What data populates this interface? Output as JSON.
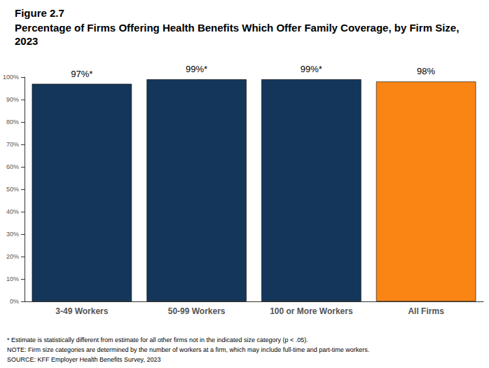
{
  "chart_data": {
    "type": "bar",
    "title": "Figure 2.7",
    "subtitle": "Percentage of Firms Offering Health Benefits Which Offer Family Coverage, by Firm Size, 2023",
    "categories": [
      "3-49 Workers",
      "50-99 Workers",
      "100 or More Workers",
      "All Firms"
    ],
    "values": [
      97,
      99,
      99,
      98
    ],
    "value_labels": [
      "97%*",
      "99%*",
      "99%*",
      "98%"
    ],
    "colors": [
      "#14365a",
      "#14365a",
      "#14365a",
      "#fa8514"
    ],
    "ylim": [
      0,
      100
    ],
    "yticks": [
      {
        "value": 0,
        "label": "0%"
      },
      {
        "value": 10,
        "label": "10%"
      },
      {
        "value": 20,
        "label": "20%"
      },
      {
        "value": 30,
        "label": "30%"
      },
      {
        "value": 40,
        "label": "40%"
      },
      {
        "value": 50,
        "label": "50%"
      },
      {
        "value": 60,
        "label": "60%"
      },
      {
        "value": 70,
        "label": "70%"
      },
      {
        "value": 80,
        "label": "80%"
      },
      {
        "value": 90,
        "label": "90%"
      },
      {
        "value": 100,
        "label": "100%"
      }
    ],
    "grid": false,
    "data_labels": true,
    "annotations": [
      "* Estimate is statistically different from estimate for all other firms not in the indicated size category (p < .05).",
      "NOTE: Firm size categories are determined by the number of workers at a firm, which may include full-time and part-time workers.",
      "SOURCE: KFF Employer Health Benefits Survey, 2023"
    ]
  }
}
